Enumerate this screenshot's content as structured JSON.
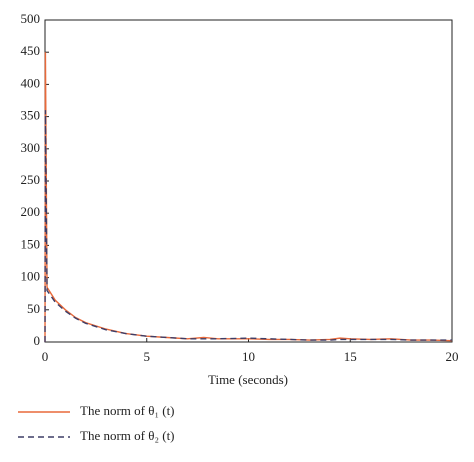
{
  "chart_data": {
    "type": "line",
    "x_label": "Time (seconds)",
    "x": [
      0,
      0.02,
      0.1,
      0.5,
      1,
      1.5,
      2,
      3,
      4,
      5,
      6,
      7,
      7.8,
      8.5,
      10,
      11,
      12,
      13,
      14,
      14.5,
      15,
      16,
      17,
      18,
      19,
      20
    ],
    "series": [
      {
        "name": "The norm of θ₁ (t)",
        "color": "#e8693a",
        "linestyle": "solid",
        "values": [
          0,
          450,
          85,
          65,
          50,
          38,
          30,
          20,
          13,
          9,
          7,
          5,
          7,
          5,
          5,
          4,
          4,
          3,
          4,
          6,
          5,
          4,
          5,
          3,
          3,
          2
        ]
      },
      {
        "name": "The norm of θ₂ (t)",
        "color": "#3d3d66",
        "linestyle": "dashed",
        "values": [
          0,
          360,
          80,
          62,
          48,
          37,
          29,
          19,
          13,
          9,
          7,
          5,
          5,
          5,
          6,
          5,
          4,
          3,
          3,
          4,
          4,
          4,
          4,
          3,
          3,
          3
        ]
      }
    ],
    "xlim": [
      0,
      20
    ],
    "xticks": [
      0,
      5,
      10,
      15,
      20
    ],
    "ylim": [
      0,
      500
    ],
    "yticks": [
      0,
      50,
      100,
      150,
      200,
      250,
      300,
      350,
      400,
      450,
      500
    ],
    "grid": false
  }
}
